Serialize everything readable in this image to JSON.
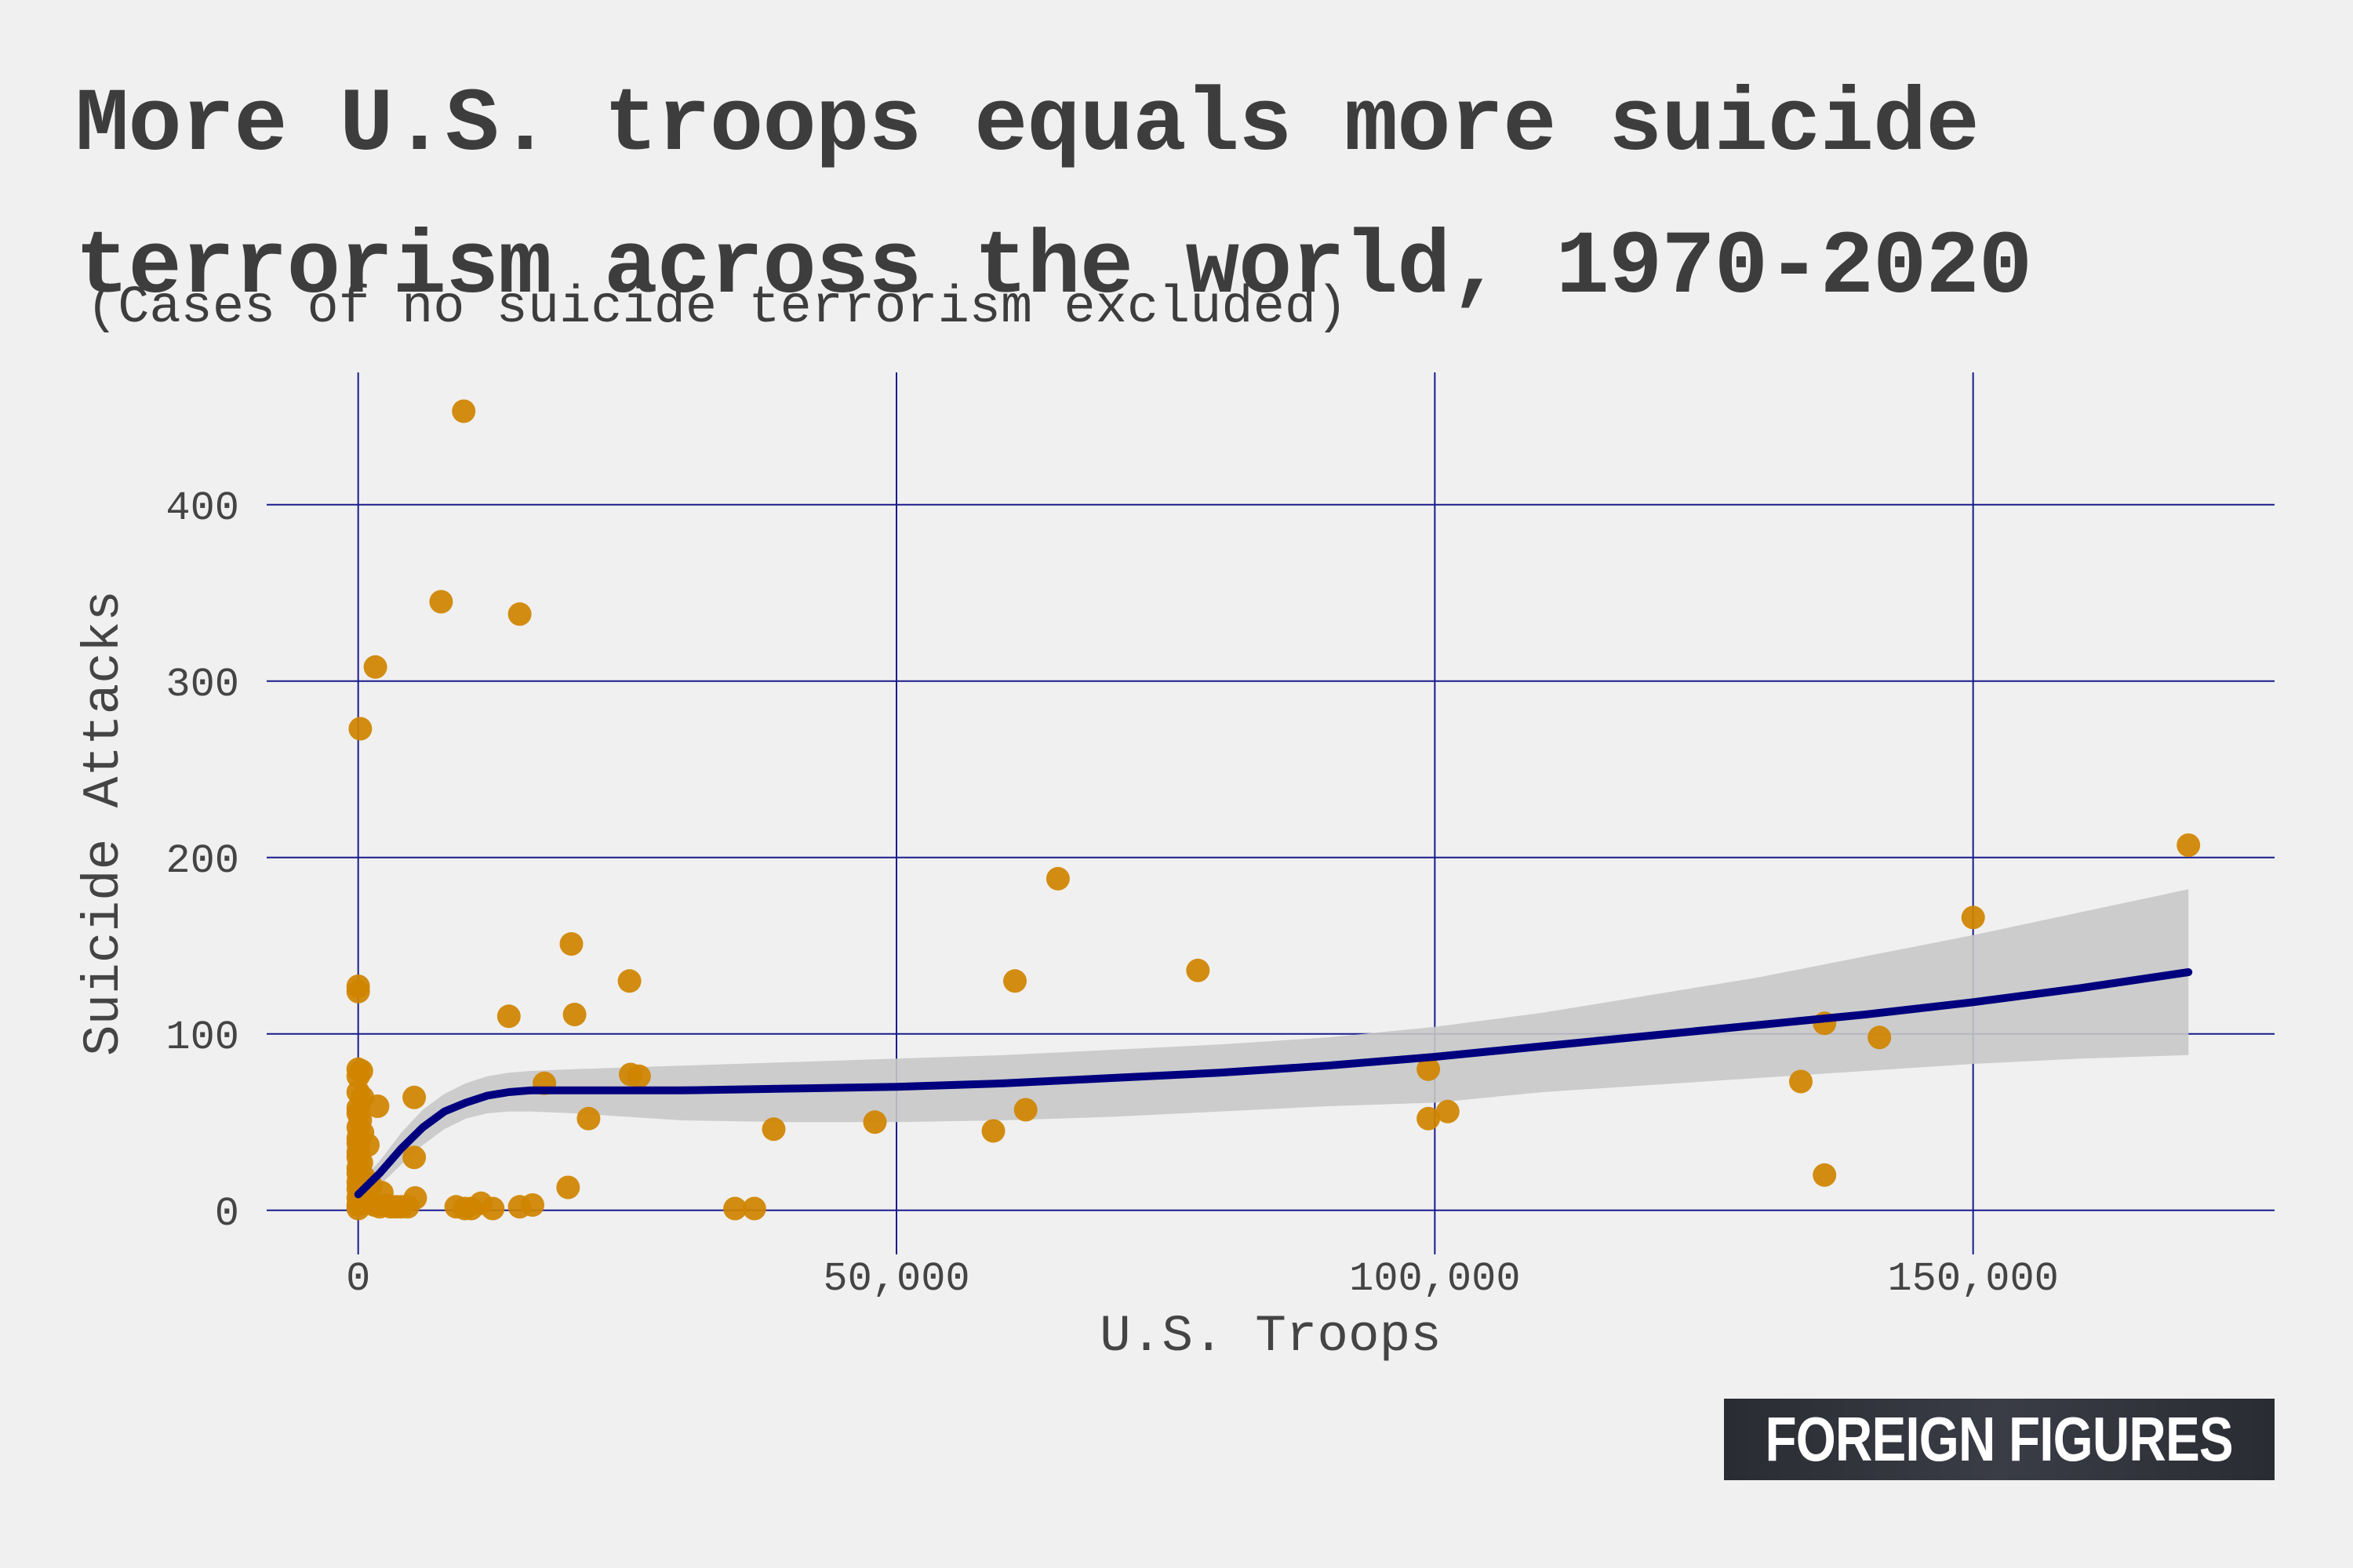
{
  "title": "More U.S. troops equals more suicide terrorism across the world, 1970-2020",
  "subtitle": "(Cases of no suicide terrorism excluded)",
  "brand": "FOREIGN FIGURES",
  "colors": {
    "background": "#f0f0f0",
    "grid": "#1a1a8c",
    "points": "#d08400",
    "trend_line": "#00007f",
    "confidence_band": "#c8c8c8",
    "text": "#3d3d3d"
  },
  "chart_data": {
    "type": "scatter",
    "title": "More U.S. troops equals more suicide terrorism across the world, 1970-2020",
    "subtitle": "(Cases of no suicide terrorism excluded)",
    "xlabel": "U.S. Troops",
    "ylabel": "Suicide Attacks",
    "xlim": [
      -8500,
      178000
    ],
    "ylim": [
      -25,
      475
    ],
    "x_ticks": [
      0,
      50000,
      100000,
      150000
    ],
    "x_tick_labels": [
      "0",
      "50,000",
      "100,000",
      "150,000"
    ],
    "y_ticks": [
      0,
      100,
      200,
      300,
      400
    ],
    "y_tick_labels": [
      "0",
      "100",
      "200",
      "300",
      "400"
    ],
    "grid": true,
    "points": [
      [
        9800,
        453
      ],
      [
        7700,
        345
      ],
      [
        15000,
        338
      ],
      [
        1600,
        308
      ],
      [
        200,
        273
      ],
      [
        0,
        127
      ],
      [
        0,
        124
      ],
      [
        0,
        80
      ],
      [
        300,
        79
      ],
      [
        0,
        76
      ],
      [
        0,
        67
      ],
      [
        400,
        64
      ],
      [
        0,
        58
      ],
      [
        1800,
        59
      ],
      [
        0,
        55
      ],
      [
        200,
        51
      ],
      [
        0,
        47
      ],
      [
        400,
        44
      ],
      [
        0,
        41
      ],
      [
        0,
        38
      ],
      [
        900,
        37
      ],
      [
        0,
        33
      ],
      [
        0,
        30
      ],
      [
        300,
        27
      ],
      [
        0,
        24
      ],
      [
        0,
        21
      ],
      [
        500,
        19
      ],
      [
        0,
        16
      ],
      [
        1200,
        14
      ],
      [
        0,
        12
      ],
      [
        300,
        9
      ],
      [
        2200,
        10
      ],
      [
        0,
        7
      ],
      [
        700,
        5
      ],
      [
        1000,
        4
      ],
      [
        1500,
        3
      ],
      [
        2000,
        2
      ],
      [
        2600,
        3
      ],
      [
        3000,
        2
      ],
      [
        3500,
        2
      ],
      [
        4000,
        2
      ],
      [
        4600,
        2
      ],
      [
        0,
        3
      ],
      [
        0,
        1
      ],
      [
        5200,
        64
      ],
      [
        5200,
        30
      ],
      [
        5300,
        7
      ],
      [
        9100,
        2
      ],
      [
        9900,
        1
      ],
      [
        10500,
        1
      ],
      [
        11400,
        4
      ],
      [
        12500,
        1
      ],
      [
        15000,
        2
      ],
      [
        16200,
        3
      ],
      [
        14000,
        110
      ],
      [
        17300,
        72
      ],
      [
        19500,
        13
      ],
      [
        19800,
        151
      ],
      [
        20100,
        111
      ],
      [
        21400,
        52
      ],
      [
        25200,
        130
      ],
      [
        25300,
        77
      ],
      [
        26100,
        76
      ],
      [
        35000,
        1
      ],
      [
        36800,
        1
      ],
      [
        38600,
        46
      ],
      [
        48000,
        50
      ],
      [
        59000,
        45
      ],
      [
        61000,
        130
      ],
      [
        62000,
        57
      ],
      [
        65000,
        188
      ],
      [
        78000,
        136
      ],
      [
        99400,
        80
      ],
      [
        99400,
        52
      ],
      [
        101200,
        56
      ],
      [
        134000,
        73
      ],
      [
        136200,
        106
      ],
      [
        136200,
        20
      ],
      [
        141300,
        98
      ],
      [
        150000,
        166
      ],
      [
        170000,
        207
      ]
    ],
    "trend": {
      "x": [
        0,
        2000,
        4000,
        6000,
        8000,
        10000,
        12000,
        14000,
        16000,
        20000,
        30000,
        40000,
        50000,
        60000,
        70000,
        80000,
        90000,
        100000,
        110000,
        120000,
        130000,
        140000,
        150000,
        160000,
        170000
      ],
      "y": [
        9,
        21,
        35,
        47,
        56,
        61,
        65,
        67,
        68,
        68,
        68,
        69,
        70,
        72,
        75,
        78,
        82,
        87,
        93,
        99,
        105,
        111,
        118,
        126,
        135
      ],
      "lower": [
        3,
        14,
        26,
        37,
        46,
        52,
        55,
        56,
        56,
        55,
        51,
        50,
        50,
        51,
        53,
        56,
        59,
        61,
        67,
        71,
        75,
        79,
        83,
        86,
        88
      ],
      "upper": [
        15,
        28,
        44,
        57,
        66,
        72,
        76,
        78,
        79,
        80,
        82,
        84,
        86,
        88,
        91,
        94,
        98,
        104,
        112,
        122,
        132,
        144,
        156,
        169,
        182
      ]
    }
  }
}
